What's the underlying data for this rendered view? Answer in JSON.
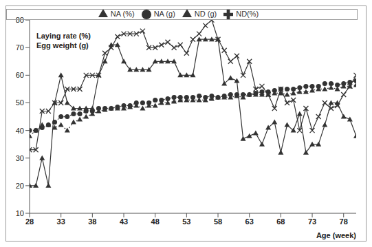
{
  "chart_data": {
    "type": "line",
    "x_label": "Age (week)",
    "annotations": [
      "Laying rate (%)",
      "Egg weight (g)"
    ],
    "x": [
      28,
      29,
      30,
      31,
      32,
      33,
      34,
      35,
      36,
      37,
      38,
      39,
      40,
      41,
      42,
      43,
      44,
      45,
      46,
      47,
      48,
      49,
      50,
      51,
      52,
      53,
      54,
      55,
      56,
      57,
      58,
      59,
      60,
      61,
      62,
      63,
      64,
      65,
      66,
      67,
      68,
      69,
      70,
      71,
      72,
      73,
      74,
      75,
      76,
      77,
      78,
      79,
      80
    ],
    "xlim": [
      28,
      80
    ],
    "xticks": [
      28,
      33,
      38,
      43,
      48,
      53,
      58,
      63,
      68,
      73,
      78
    ],
    "ylim": [
      10,
      80
    ],
    "yticks": [
      10,
      20,
      30,
      40,
      50,
      60,
      70,
      80
    ],
    "grid": false,
    "legend": "top",
    "series": [
      {
        "name": "NA (g)",
        "color": "#333333",
        "marker": "circle",
        "line_style": "dotted",
        "values": [
          40,
          40,
          41,
          42,
          43,
          45,
          45,
          46,
          46,
          47,
          47,
          48,
          48,
          48,
          48.5,
          49,
          49,
          50,
          50,
          50,
          51,
          51,
          51.5,
          52,
          52,
          52,
          52,
          52.5,
          52,
          52.5,
          52,
          52.5,
          53,
          53,
          53,
          53,
          53.5,
          54,
          54,
          54.5,
          55,
          55,
          55,
          55.5,
          56,
          56,
          56,
          57,
          57,
          56.5,
          57,
          57.5,
          58
        ]
      },
      {
        "name": "ND (g)",
        "color": "#333333",
        "marker": "triangle",
        "line_style": "dotted",
        "values": [
          38,
          40,
          42,
          42,
          41,
          42,
          40,
          43,
          44,
          45,
          46,
          47,
          47.5,
          48,
          48,
          48,
          48.5,
          49,
          48,
          49,
          49,
          50,
          50,
          50.5,
          51,
          51,
          51,
          51,
          51,
          51.5,
          52,
          52,
          52,
          52.5,
          52,
          53,
          53,
          53,
          53,
          53.5,
          53.5,
          53,
          53.5,
          54,
          54,
          54.5,
          55,
          55,
          55.5,
          55,
          56,
          56,
          56.5
        ]
      },
      {
        "name": "NA (%)",
        "color": "#333333",
        "marker": "triangle",
        "line_style": "solid",
        "values": [
          20,
          20,
          30,
          20,
          50,
          60,
          50,
          48,
          48,
          48,
          48,
          60,
          65,
          71,
          71,
          65,
          62,
          62,
          62,
          62,
          65,
          65,
          65,
          65,
          60,
          60,
          60,
          73,
          73,
          73,
          73,
          57,
          59,
          58,
          37,
          38,
          39,
          35,
          41,
          43,
          32,
          42,
          40,
          46,
          32,
          35,
          35,
          42,
          50,
          50,
          45,
          44,
          38
        ]
      },
      {
        "name": "ND(%)",
        "color": "#333333",
        "marker": "cross",
        "line_style": "solid",
        "values": [
          33,
          33,
          47,
          47,
          50,
          50,
          55,
          55,
          55,
          60,
          60,
          60,
          68,
          70,
          74,
          75,
          75,
          75,
          76,
          70,
          70,
          71,
          72,
          70,
          71,
          68,
          73,
          75,
          78,
          80,
          73,
          69,
          65,
          67,
          60,
          65,
          55,
          56,
          53,
          48,
          55,
          50,
          51,
          40,
          48,
          40,
          45,
          50,
          48,
          49,
          53,
          56,
          60
        ]
      }
    ]
  }
}
